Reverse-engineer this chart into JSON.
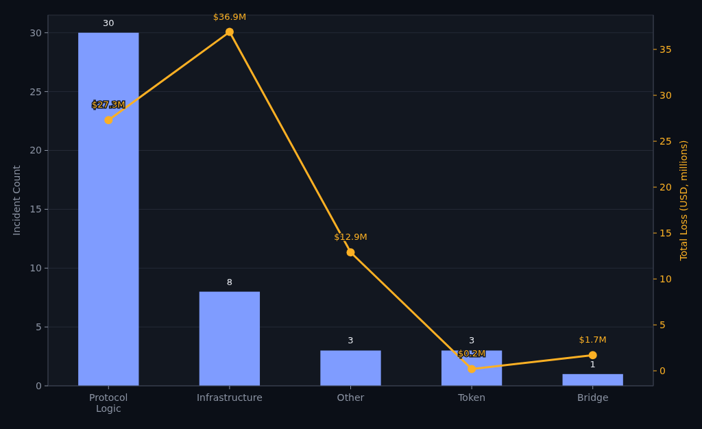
{
  "chart_data": {
    "type": "bar",
    "categories": [
      "Protocol\nLogic",
      "Infrastructure",
      "Other",
      "Token",
      "Bridge"
    ],
    "ylabel": "Incident Count",
    "y2label": "Total Loss (USD, millions)",
    "ylim": [
      0,
      31.5
    ],
    "yticks": [
      0,
      5,
      10,
      15,
      20,
      25,
      30
    ],
    "y2lim": [
      -1.635,
      38.735
    ],
    "y2ticks": [
      0,
      5,
      10,
      15,
      20,
      25,
      30,
      35
    ],
    "grid": "y",
    "data_labels": true,
    "marker": "circle",
    "line_style": "solid",
    "series": [
      {
        "color": "#7f9cff",
        "values": [
          30,
          8,
          3,
          3,
          1
        ]
      },
      {
        "type": "line",
        "axis": "y2",
        "color": "#fbb024",
        "values": [
          27.3,
          36.9,
          12.9,
          0.2,
          1.7
        ],
        "value_labels": [
          "$27.3M",
          "$36.9M",
          "$12.9M",
          "$0.2M",
          "$1.7M"
        ]
      }
    ]
  }
}
